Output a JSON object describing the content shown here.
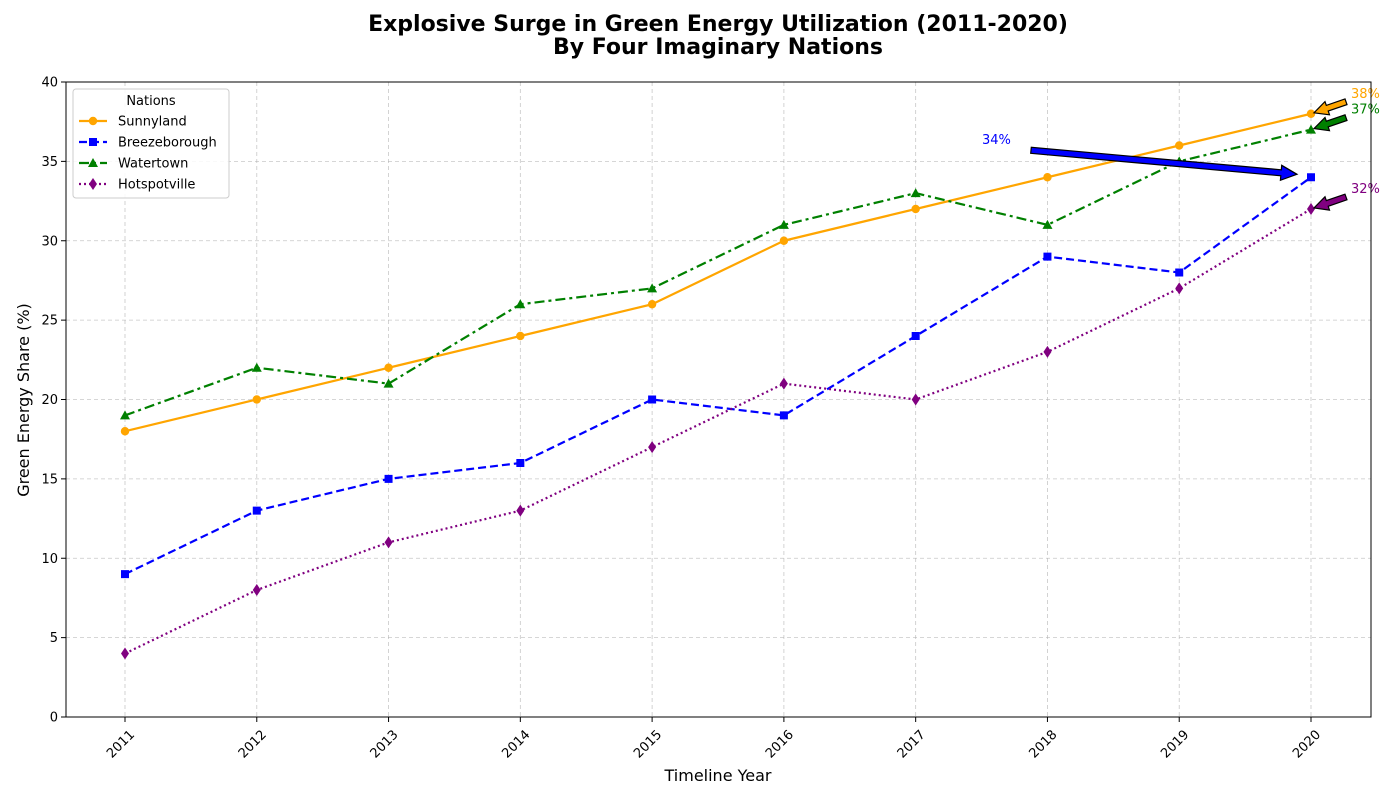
{
  "chart_data": {
    "type": "line",
    "title_line1": "Explosive Surge in Green Energy Utilization (2011-2020)",
    "title_line2": "By Four Imaginary Nations",
    "xlabel": "Timeline Year",
    "ylabel": "Green Energy Share (%)",
    "x": [
      "2011",
      "2012",
      "2013",
      "2014",
      "2015",
      "2016",
      "2017",
      "2018",
      "2019",
      "2020"
    ],
    "ylim": [
      0,
      40
    ],
    "yticks": [
      "0",
      "5",
      "10",
      "15",
      "20",
      "25",
      "30",
      "35",
      "40"
    ],
    "grid": true,
    "legend": {
      "title": "Nations",
      "placement": "upper-left"
    },
    "series": [
      {
        "name": "Sunnyland",
        "color": "#FFA500",
        "marker": "circle",
        "linestyle": "solid",
        "values": [
          18,
          20,
          22,
          24,
          26,
          30,
          32,
          34,
          36,
          38
        ]
      },
      {
        "name": "Breezeborough",
        "color": "#0000FF",
        "marker": "square",
        "linestyle": "dashed",
        "values": [
          9,
          13,
          15,
          16,
          20,
          19,
          24,
          29,
          28,
          34
        ]
      },
      {
        "name": "Watertown",
        "color": "#008000",
        "marker": "triangle",
        "linestyle": "dashdot",
        "values": [
          19,
          22,
          21,
          26,
          27,
          31,
          33,
          31,
          35,
          37
        ]
      },
      {
        "name": "Hotspotville",
        "color": "#800080",
        "marker": "diamond",
        "linestyle": "dotted",
        "values": [
          4,
          8,
          11,
          13,
          17,
          21,
          20,
          23,
          27,
          32
        ]
      }
    ],
    "annotations": [
      {
        "series": "Sunnyland",
        "text": "38%",
        "color": "#FFA500"
      },
      {
        "series": "Watertown",
        "text": "37%",
        "color": "#008000"
      },
      {
        "series": "Breezeborough",
        "text": "34%",
        "color": "#0000FF"
      },
      {
        "series": "Hotspotville",
        "text": "32%",
        "color": "#800080"
      }
    ]
  }
}
